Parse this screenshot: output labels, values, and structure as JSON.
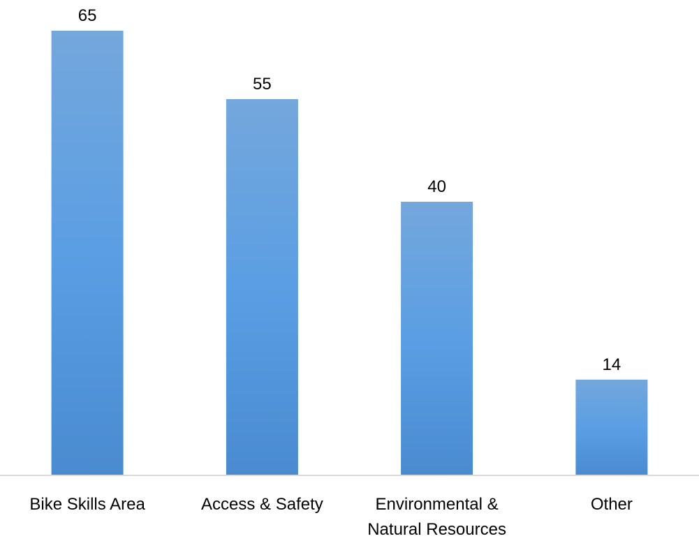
{
  "chart_data": {
    "type": "bar",
    "categories": [
      [
        "Bike Skills Area"
      ],
      [
        "Access & Safety"
      ],
      [
        "Environmental &",
        "Natural Resources"
      ],
      [
        "Other"
      ]
    ],
    "values": [
      65,
      55,
      40,
      14
    ],
    "title": "",
    "xlabel": "",
    "ylabel": "",
    "ylim": [
      0,
      70
    ],
    "grid": false,
    "legend": "none",
    "data_labels": true,
    "colors": {
      "bar_top": "#74a7dc",
      "bar_mid": "#5b9ee3",
      "bar_bottom": "#4a8bd0",
      "axis": "#d9d9d9",
      "text": "#000000"
    }
  }
}
